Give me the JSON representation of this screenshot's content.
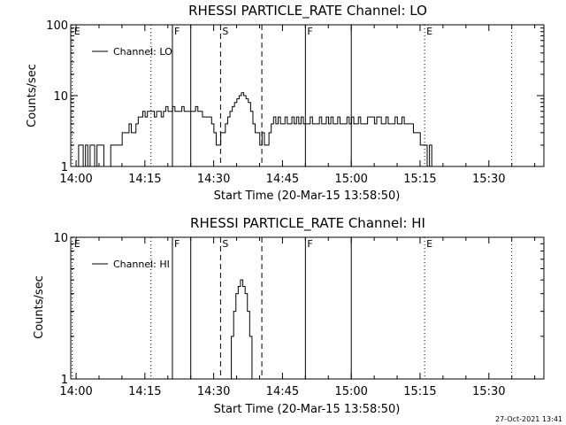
{
  "timestamp": "27-Oct-2021 13:41",
  "chart_data": [
    {
      "type": "line",
      "title": "RHESSI PARTICLE_RATE Channel: LO",
      "xlabel": "Start Time (20-Mar-15 13:58:50)",
      "ylabel": "Counts/sec",
      "y_scale": "log",
      "xlim": [
        "13:58:50",
        "15:42:00"
      ],
      "ylim": [
        1,
        100
      ],
      "x_ticks": [
        "14:00",
        "14:15",
        "14:30",
        "14:45",
        "15:00",
        "15:15",
        "15:30"
      ],
      "y_ticks": [
        "1",
        "10",
        "100"
      ],
      "legend": {
        "label": "Channel: LO",
        "placement": "top-left"
      },
      "markers": [
        {
          "label": "E",
          "time": "13:59:10",
          "style": "dotted"
        },
        {
          "label": "",
          "time": "14:16:20",
          "style": "dotted"
        },
        {
          "label": "F",
          "time": "14:21:00",
          "style": "solid"
        },
        {
          "label": "",
          "time": "14:25:00",
          "style": "solid"
        },
        {
          "label": "S",
          "time": "14:31:30",
          "style": "dashed"
        },
        {
          "label": "",
          "time": "14:40:30",
          "style": "dashed"
        },
        {
          "label": "F",
          "time": "14:50:00",
          "style": "solid"
        },
        {
          "label": "",
          "time": "15:00:00",
          "style": "solid"
        },
        {
          "label": "E",
          "time": "15:16:00",
          "style": "dotted"
        },
        {
          "label": "",
          "time": "15:35:00",
          "style": "dotted"
        }
      ],
      "series": [
        {
          "name": "Channel: LO",
          "minutes_after_1400": [
            -0.5,
            0.3,
            0.8,
            1.3,
            1.8,
            2.3,
            2.8,
            3.3,
            3.8,
            4.3,
            4.8,
            5.3,
            5.8,
            6.3,
            6.8,
            7.3,
            7.8,
            8.3,
            8.8,
            9.3,
            9.8,
            10.3,
            10.8,
            11.3,
            11.8,
            12.3,
            12.8,
            13.3,
            13.8,
            14.3,
            14.8,
            15.3,
            15.8,
            16.3,
            16.8,
            17.3,
            17.8,
            18.3,
            18.8,
            19.3,
            19.8,
            20.3,
            20.8,
            21.3,
            21.8,
            22.3,
            22.8,
            23.3,
            23.8,
            24.3,
            24.8,
            25.3,
            25.8,
            26.3,
            26.8,
            27.3,
            27.8,
            28.3,
            28.8,
            29.3,
            29.8,
            30.3,
            30.8,
            31.3,
            31.8,
            32.3,
            32.8,
            33.3,
            33.8,
            34.3,
            34.8,
            35.3,
            35.8,
            36.3,
            36.8,
            37.3,
            37.8,
            38.3,
            38.8,
            39.3,
            39.8,
            40.3,
            40.8,
            41.3,
            41.8,
            42.3,
            42.8,
            43.3,
            43.8,
            44.3,
            44.8,
            45.3,
            45.8,
            46.3,
            46.8,
            47.3,
            47.8,
            48.3,
            48.8,
            49.3,
            49.8,
            50.3,
            50.8,
            51.3,
            51.8,
            52.3,
            52.8,
            53.3,
            53.8,
            54.3,
            54.8,
            55.3,
            55.8,
            56.3,
            56.8,
            57.3,
            57.8,
            58.3,
            58.8,
            59.3,
            59.8,
            60.3,
            60.8,
            61.3,
            61.8,
            62.3,
            62.8,
            63.3,
            63.8,
            64.3,
            64.8,
            65.3,
            65.8,
            66.3,
            66.8,
            67.3,
            67.8,
            68.3,
            68.8,
            69.3,
            69.8,
            70.3,
            70.8,
            71.3,
            71.8,
            72.3,
            72.8,
            73.3,
            73.8,
            74.3,
            74.8,
            75.3,
            75.8,
            76.3,
            76.8,
            77.3,
            77.8,
            78.3,
            78.8,
            79.3,
            79.8,
            80.3,
            80.8,
            81.3,
            81.8,
            82.3,
            82.8,
            83.3,
            83.8,
            84.3,
            84.8,
            85.3,
            85.8,
            86.3,
            86.8,
            87.3,
            87.8,
            88.3,
            88.8,
            89.3,
            89.8,
            90.3,
            90.8,
            91.3,
            91.8,
            92.3
          ],
          "values": [
            1,
            1,
            2,
            2,
            1,
            2,
            1,
            2,
            2,
            1,
            2,
            2,
            2,
            1,
            1,
            1,
            2,
            2,
            2,
            2,
            2,
            3,
            3,
            3,
            4,
            3,
            3,
            4,
            5,
            5,
            6,
            5,
            6,
            6,
            6,
            5,
            6,
            6,
            5,
            6,
            7,
            6,
            6,
            7,
            6,
            6,
            6,
            7,
            6,
            6,
            6,
            6,
            6,
            7,
            6,
            6,
            5,
            5,
            5,
            5,
            4,
            3,
            2,
            2,
            3,
            3,
            4,
            5,
            6,
            7,
            8,
            9,
            10,
            11,
            10,
            9,
            8,
            6,
            4,
            3,
            3,
            2,
            3,
            2,
            2,
            3,
            4,
            5,
            4,
            5,
            4,
            4,
            5,
            4,
            4,
            5,
            4,
            5,
            4,
            5,
            4,
            4,
            4,
            5,
            4,
            4,
            4,
            5,
            4,
            4,
            5,
            4,
            5,
            4,
            4,
            5,
            4,
            4,
            4,
            5,
            4,
            5,
            4,
            4,
            5,
            4,
            4,
            4,
            5,
            5,
            5,
            4,
            5,
            5,
            4,
            4,
            5,
            4,
            4,
            4,
            5,
            4,
            4,
            5,
            4,
            4,
            4,
            4,
            3,
            3,
            3,
            2,
            2,
            2,
            1,
            2,
            1,
            1,
            1,
            1,
            1,
            1,
            1,
            1,
            1,
            1,
            1,
            1,
            1,
            1,
            1,
            1,
            1,
            1,
            1,
            1,
            1,
            1,
            1,
            1,
            1,
            1,
            1,
            1,
            1,
            1,
            1,
            1,
            1
          ]
        }
      ]
    },
    {
      "type": "line",
      "title": "RHESSI PARTICLE_RATE Channel: HI",
      "xlabel": "Start Time (20-Mar-15 13:58:50)",
      "ylabel": "Counts/sec",
      "y_scale": "log",
      "xlim": [
        "13:58:50",
        "15:42:00"
      ],
      "ylim": [
        1,
        10
      ],
      "x_ticks": [
        "14:00",
        "14:15",
        "14:30",
        "14:45",
        "15:00",
        "15:15",
        "15:30"
      ],
      "y_ticks": [
        "1",
        "10"
      ],
      "legend": {
        "label": "Channel: HI",
        "placement": "top-left"
      },
      "markers": [
        {
          "label": "E",
          "time": "13:59:10",
          "style": "dotted"
        },
        {
          "label": "",
          "time": "14:16:20",
          "style": "dotted"
        },
        {
          "label": "F",
          "time": "14:21:00",
          "style": "solid"
        },
        {
          "label": "",
          "time": "14:25:00",
          "style": "solid"
        },
        {
          "label": "S",
          "time": "14:31:30",
          "style": "dashed"
        },
        {
          "label": "",
          "time": "14:40:30",
          "style": "dashed"
        },
        {
          "label": "F",
          "time": "14:50:00",
          "style": "solid"
        },
        {
          "label": "",
          "time": "15:00:00",
          "style": "solid"
        },
        {
          "label": "E",
          "time": "15:16:00",
          "style": "dotted"
        },
        {
          "label": "",
          "time": "15:35:00",
          "style": "dotted"
        }
      ],
      "series": [
        {
          "name": "Channel: HI",
          "minutes_after_1400": [
            33.6,
            34.1,
            34.6,
            35.1,
            35.6,
            36.1,
            36.6,
            37.1,
            37.6,
            38.1,
            38.6
          ],
          "values": [
            1,
            2,
            3,
            4,
            4.5,
            5,
            4.5,
            4,
            3,
            2,
            1
          ]
        }
      ]
    }
  ]
}
